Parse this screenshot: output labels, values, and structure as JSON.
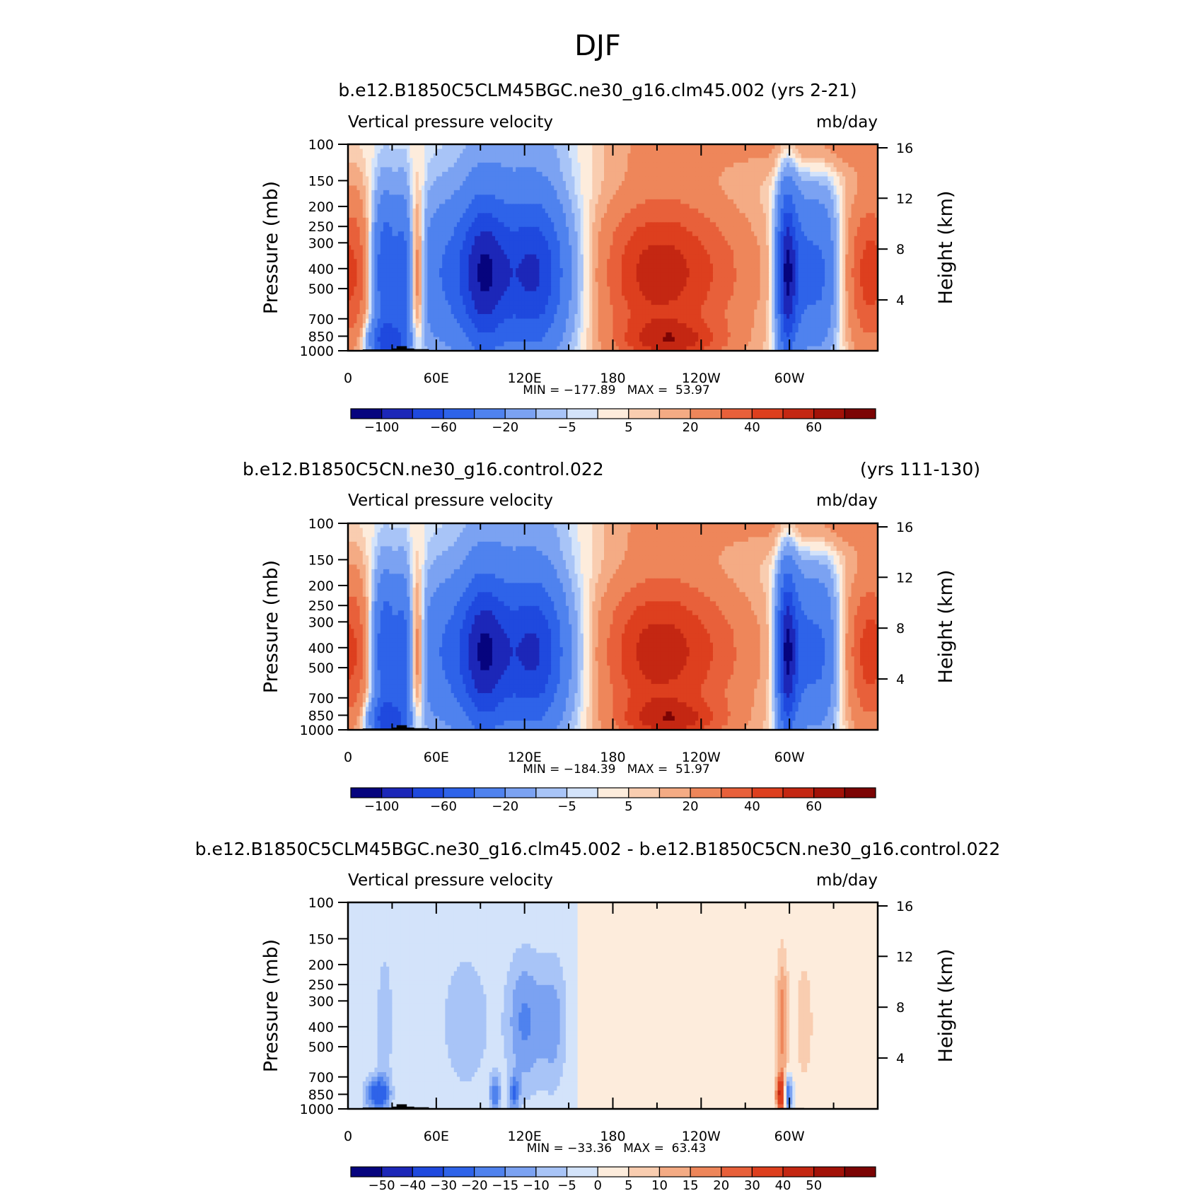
{
  "page_title": "DJF",
  "chart_data": [
    {
      "type": "heatmap",
      "title": "b.e12.B1850C5CLM45BGC.ne30_g16.clm45.002 (yrs 2-21)",
      "title_right": "",
      "subtitle_left": "Vertical pressure velocity",
      "subtitle_right": "mb/day",
      "ylabel": "Pressure (mb)",
      "ylabel_right": "Height (km)",
      "x_ticks": [
        "0",
        "60E",
        "120E",
        "180",
        "120W",
        "60W"
      ],
      "x_range": [
        0,
        360
      ],
      "y_ticks": [
        "100",
        "150",
        "200",
        "250",
        "300",
        "400",
        "500",
        "700",
        "850",
        "1000"
      ],
      "y_range": [
        100,
        1000
      ],
      "right_ticks": [
        "16",
        "12",
        "8",
        "4"
      ],
      "stats": "MIN = −177.89   MAX =  53.97",
      "min": -177.89,
      "max": 53.97,
      "colorbar_levels": [
        -120,
        -100,
        -80,
        -60,
        -40,
        -20,
        -10,
        -5,
        -2,
        2,
        5,
        10,
        20,
        30,
        40,
        50,
        60
      ],
      "colorbar_labels": [
        "−100",
        "−60",
        "−20",
        "−5",
        "5",
        "20",
        "40",
        "60"
      ],
      "colorbar_label_positions": [
        1,
        3,
        5,
        7,
        9,
        11,
        13,
        15
      ],
      "colorbar_colors": [
        "#06047e",
        "#1c27b8",
        "#1f49de",
        "#2e63e9",
        "#4f82ee",
        "#7ba2f2",
        "#a8c4f7",
        "#d3e3fa",
        "#fdecdc",
        "#f9cdb0",
        "#f4ab84",
        "#ee865a",
        "#e8603a",
        "#dd3f1e",
        "#c42712",
        "#a21208",
        "#7c0404"
      ],
      "variant": "mean"
    },
    {
      "type": "heatmap",
      "title": "b.e12.B1850C5CN.ne30_g16.control.022",
      "title_right": "(yrs 111-130)",
      "subtitle_left": "Vertical pressure velocity",
      "subtitle_right": "mb/day",
      "ylabel": "Pressure (mb)",
      "ylabel_right": "Height (km)",
      "x_ticks": [
        "0",
        "60E",
        "120E",
        "180",
        "120W",
        "60W"
      ],
      "x_range": [
        0,
        360
      ],
      "y_ticks": [
        "100",
        "150",
        "200",
        "250",
        "300",
        "400",
        "500",
        "700",
        "850",
        "1000"
      ],
      "y_range": [
        100,
        1000
      ],
      "right_ticks": [
        "16",
        "12",
        "8",
        "4"
      ],
      "stats": "MIN = −184.39   MAX =  51.97",
      "min": -184.39,
      "max": 51.97,
      "colorbar_levels": [
        -120,
        -100,
        -80,
        -60,
        -40,
        -20,
        -10,
        -5,
        -2,
        2,
        5,
        10,
        20,
        30,
        40,
        50,
        60
      ],
      "colorbar_labels": [
        "−100",
        "−60",
        "−20",
        "−5",
        "5",
        "20",
        "40",
        "60"
      ],
      "colorbar_label_positions": [
        1,
        3,
        5,
        7,
        9,
        11,
        13,
        15
      ],
      "colorbar_colors": [
        "#06047e",
        "#1c27b8",
        "#1f49de",
        "#2e63e9",
        "#4f82ee",
        "#7ba2f2",
        "#a8c4f7",
        "#d3e3fa",
        "#fdecdc",
        "#f9cdb0",
        "#f4ab84",
        "#ee865a",
        "#e8603a",
        "#dd3f1e",
        "#c42712",
        "#a21208",
        "#7c0404"
      ],
      "variant": "mean"
    },
    {
      "type": "heatmap",
      "title": "b.e12.B1850C5CLM45BGC.ne30_g16.clm45.002 - b.e12.B1850C5CN.ne30_g16.control.022",
      "title_right": "",
      "subtitle_left": "Vertical pressure velocity",
      "subtitle_right": "mb/day",
      "ylabel": "Pressure (mb)",
      "ylabel_right": "Height (km)",
      "x_ticks": [
        "0",
        "60E",
        "120E",
        "180",
        "120W",
        "60W"
      ],
      "x_range": [
        0,
        360
      ],
      "y_ticks": [
        "100",
        "150",
        "200",
        "250",
        "300",
        "400",
        "500",
        "700",
        "850",
        "1000"
      ],
      "y_range": [
        100,
        1000
      ],
      "right_ticks": [
        "16",
        "12",
        "8",
        "4"
      ],
      "stats": "MIN = −33.36   MAX =  63.43",
      "min": -33.36,
      "max": 63.43,
      "colorbar_levels": [
        -60,
        -50,
        -40,
        -30,
        -20,
        -15,
        -10,
        -5,
        0,
        5,
        10,
        15,
        20,
        30,
        40,
        50,
        60
      ],
      "colorbar_labels": [
        "−50",
        "−40",
        "−30",
        "−20",
        "−15",
        "−10",
        "−5",
        "0",
        "5",
        "10",
        "15",
        "20",
        "30",
        "40",
        "50"
      ],
      "colorbar_label_positions": [
        1,
        2,
        3,
        4,
        5,
        6,
        7,
        8,
        9,
        10,
        11,
        12,
        13,
        14,
        15
      ],
      "colorbar_colors": [
        "#06047e",
        "#1c27b8",
        "#1f49de",
        "#2e63e9",
        "#4f82ee",
        "#7ba2f2",
        "#a8c4f7",
        "#d3e3fa",
        "#fdecdc",
        "#f9cdb0",
        "#f4ab84",
        "#ee865a",
        "#e8603a",
        "#dd3f1e",
        "#c42712",
        "#a21208",
        "#7c0404"
      ],
      "variant": "diff"
    }
  ]
}
